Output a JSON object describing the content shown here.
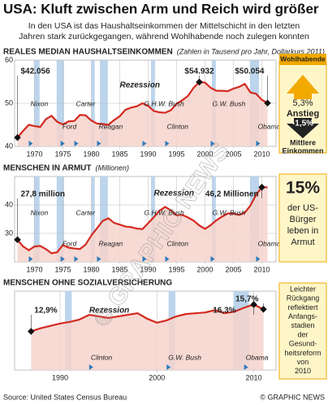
{
  "title": "USA: Kluft zwischen Arm und Reich wird größer",
  "subtitle_1": "In den USA ist das Haushaltseinkommen der Mittelschicht in den letzten",
  "subtitle_2": "Jahren stark zurückgegangen, während Wohlhabende noch zulegen konnten",
  "chart_data": [
    {
      "type": "line",
      "title": "Reales Median Haushaltseinkommen",
      "subtitle": "(Zahlen in Tausend pro Jahr, Dollarkurs 2011)",
      "x": [
        1967,
        1968,
        1969,
        1970,
        1971,
        1972,
        1973,
        1974,
        1975,
        1976,
        1977,
        1978,
        1979,
        1980,
        1981,
        1982,
        1983,
        1984,
        1985,
        1986,
        1987,
        1988,
        1989,
        1990,
        1991,
        1992,
        1993,
        1994,
        1995,
        1996,
        1997,
        1998,
        1999,
        2000,
        2001,
        2002,
        2003,
        2004,
        2005,
        2006,
        2007,
        2008,
        2009,
        2010,
        2011
      ],
      "values": [
        42.056,
        43.6,
        45.0,
        44.7,
        44.5,
        46.3,
        47.1,
        45.7,
        45.1,
        45.8,
        45.9,
        47.3,
        47.2,
        46.0,
        45.3,
        45.2,
        45.0,
        46.1,
        47.0,
        48.5,
        49.0,
        49.3,
        50.0,
        49.4,
        48.2,
        47.9,
        47.8,
        48.4,
        49.9,
        50.7,
        51.7,
        53.6,
        54.932,
        54.8,
        53.6,
        52.9,
        52.9,
        52.8,
        53.4,
        53.8,
        54.5,
        52.5,
        52.2,
        50.8,
        50.054
      ],
      "value_labels": [
        "$42.056",
        null,
        null,
        null,
        null,
        null,
        null,
        null,
        null,
        null,
        null,
        null,
        null,
        null,
        null,
        null,
        null,
        null,
        null,
        null,
        null,
        null,
        null,
        null,
        null,
        null,
        null,
        null,
        null,
        null,
        null,
        null,
        "$54.932",
        null,
        null,
        null,
        null,
        null,
        null,
        null,
        null,
        null,
        null,
        null,
        "$50.054"
      ],
      "xlim": [
        1966.5,
        2012.5
      ],
      "ylim": [
        40,
        60
      ],
      "yticks": [
        40,
        50,
        60
      ],
      "xticks": [
        1970,
        1975,
        1980,
        1985,
        1990,
        1995,
        2000,
        2005,
        2010
      ],
      "recessions": [
        [
          1969.9,
          1970.9
        ],
        [
          1973.9,
          1975.2
        ],
        [
          1980,
          1980.6
        ],
        [
          1981.5,
          1982.9
        ],
        [
          1990.5,
          1991.2
        ],
        [
          2001.2,
          2001.9
        ],
        [
          2007.9,
          2009.5
        ]
      ],
      "recession_label": "Rezession",
      "presidents": [
        {
          "x": 1969,
          "label": "Nixon"
        },
        {
          "x": 1974.6,
          "label": "Ford"
        },
        {
          "x": 1977,
          "label": "Carter"
        },
        {
          "x": 1981,
          "label": "Reagan"
        },
        {
          "x": 1989,
          "label": "G.H.W. Bush"
        },
        {
          "x": 1993,
          "label": "Clinton"
        },
        {
          "x": 2001,
          "label": "G.W. Bush"
        },
        {
          "x": 2009,
          "label": "Obama"
        }
      ],
      "color": "#d42a20",
      "fill": "#f6d3cd",
      "recession_color": "#bcd5ec",
      "side": {
        "top": "Wohlhabende",
        "value1": "5,3%",
        "text1": "Anstieg",
        "value2": "-1,5%",
        "bottom_1": "Mittlere",
        "bottom_2": "Einkommen"
      }
    },
    {
      "type": "line",
      "title": "Menschen in Armut",
      "subtitle": "(Millionen)",
      "x": [
        1967,
        1968,
        1969,
        1970,
        1971,
        1972,
        1973,
        1974,
        1975,
        1976,
        1977,
        1978,
        1979,
        1980,
        1981,
        1982,
        1983,
        1984,
        1985,
        1986,
        1987,
        1988,
        1989,
        1990,
        1991,
        1992,
        1993,
        1994,
        1995,
        1996,
        1997,
        1998,
        1999,
        2000,
        2001,
        2002,
        2003,
        2004,
        2005,
        2006,
        2007,
        2008,
        2009,
        2010,
        2011
      ],
      "values": [
        27.8,
        25.4,
        24.1,
        25.4,
        25.6,
        24.5,
        23.0,
        23.4,
        25.9,
        25.0,
        24.7,
        24.5,
        26.1,
        29.3,
        31.8,
        34.4,
        35.3,
        33.7,
        33.1,
        32.4,
        32.2,
        31.7,
        31.5,
        33.6,
        35.7,
        38.0,
        39.3,
        38.1,
        36.4,
        36.5,
        35.6,
        34.5,
        32.8,
        31.6,
        32.9,
        34.6,
        35.9,
        37.0,
        37.0,
        36.5,
        37.3,
        39.8,
        43.6,
        46.2,
        46.2
      ],
      "value_labels": [
        "27,8 million",
        null,
        null,
        null,
        null,
        null,
        null,
        null,
        null,
        null,
        null,
        null,
        null,
        null,
        null,
        null,
        null,
        null,
        null,
        null,
        null,
        null,
        null,
        null,
        null,
        null,
        null,
        null,
        null,
        null,
        null,
        null,
        null,
        null,
        null,
        null,
        null,
        null,
        null,
        null,
        null,
        null,
        null,
        "46,2 Millionen",
        null
      ],
      "xlim": [
        1966.5,
        2012.5
      ],
      "ylim": [
        20,
        50
      ],
      "yticks": [
        30,
        40
      ],
      "xticks": [
        1970,
        1975,
        1980,
        1985,
        1990,
        1995,
        2000,
        2005,
        2010
      ],
      "recessions": [
        [
          1969.9,
          1970.9
        ],
        [
          1973.9,
          1975.2
        ],
        [
          1980,
          1980.6
        ],
        [
          1981.5,
          1982.9
        ],
        [
          1990.5,
          1991.2
        ],
        [
          2001.2,
          2001.9
        ],
        [
          2007.9,
          2009.5
        ]
      ],
      "recession_label": "Rezession",
      "presidents": [
        {
          "x": 1969,
          "label": "Nixon"
        },
        {
          "x": 1974.6,
          "label": "Ford"
        },
        {
          "x": 1977,
          "label": "Carter"
        },
        {
          "x": 1981,
          "label": "Reagan"
        },
        {
          "x": 1989,
          "label": "G.H.W. Bush"
        },
        {
          "x": 1993,
          "label": "Clinton"
        },
        {
          "x": 2001,
          "label": "G.W. Bush"
        },
        {
          "x": 2009,
          "label": "Obama"
        }
      ],
      "color": "#d42a20",
      "fill": "#f6d3cd",
      "recession_color": "#bcd5ec",
      "side": {
        "big": "15%",
        "text_1": "der US-",
        "text_2": "Bürger",
        "text_3": "leben in",
        "text_4": "Armut"
      }
    },
    {
      "type": "line",
      "title": "Menschen ohne Sozialversicherung",
      "x": [
        1987,
        1988,
        1989,
        1990,
        1991,
        1992,
        1993,
        1994,
        1995,
        1996,
        1997,
        1998,
        1999,
        2000,
        2001,
        2002,
        2003,
        2004,
        2005,
        2006,
        2007,
        2008,
        2009,
        2010,
        2011
      ],
      "values": [
        12.9,
        13.3,
        13.6,
        13.9,
        14.1,
        14.4,
        15.0,
        14.8,
        14.6,
        14.8,
        15.0,
        15.2,
        14.5,
        14.0,
        14.3,
        14.8,
        15.1,
        15.2,
        15.3,
        15.6,
        15.2,
        15.4,
        15.9,
        16.3,
        15.7
      ],
      "value_labels": [
        "12,9%",
        null,
        null,
        null,
        null,
        null,
        null,
        null,
        null,
        null,
        null,
        null,
        null,
        null,
        null,
        null,
        null,
        null,
        null,
        null,
        null,
        null,
        null,
        "16,3%",
        "15,7%"
      ],
      "xlim": [
        1985.3,
        2012.3
      ],
      "ylim": [
        8,
        18
      ],
      "xticks": [
        1990,
        2000,
        2010
      ],
      "recessions": [
        [
          1990.5,
          1991.2
        ],
        [
          2001.2,
          2001.9
        ],
        [
          2007.9,
          2009.5
        ]
      ],
      "recession_label": "Rezession",
      "presidents": [
        {
          "x": 1993,
          "label": "Clinton"
        },
        {
          "x": 2001,
          "label": "G.W. Bush"
        },
        {
          "x": 2009,
          "label": "Obama"
        }
      ],
      "color": "#d42a20",
      "fill": "#f6d3cd",
      "recession_color": "#bcd5ec",
      "side": {
        "lines": [
          "Leichter",
          "Rückgang",
          "reflektiert",
          "Anfangs-",
          "stadien",
          "der",
          "Gesund-",
          "heitsreform",
          "von",
          "2010"
        ]
      }
    }
  ],
  "source": "Source: United States Census Bureau",
  "credit": "© GRAPHIC NEWS",
  "watermark": "© GRAPHIC NEWS"
}
